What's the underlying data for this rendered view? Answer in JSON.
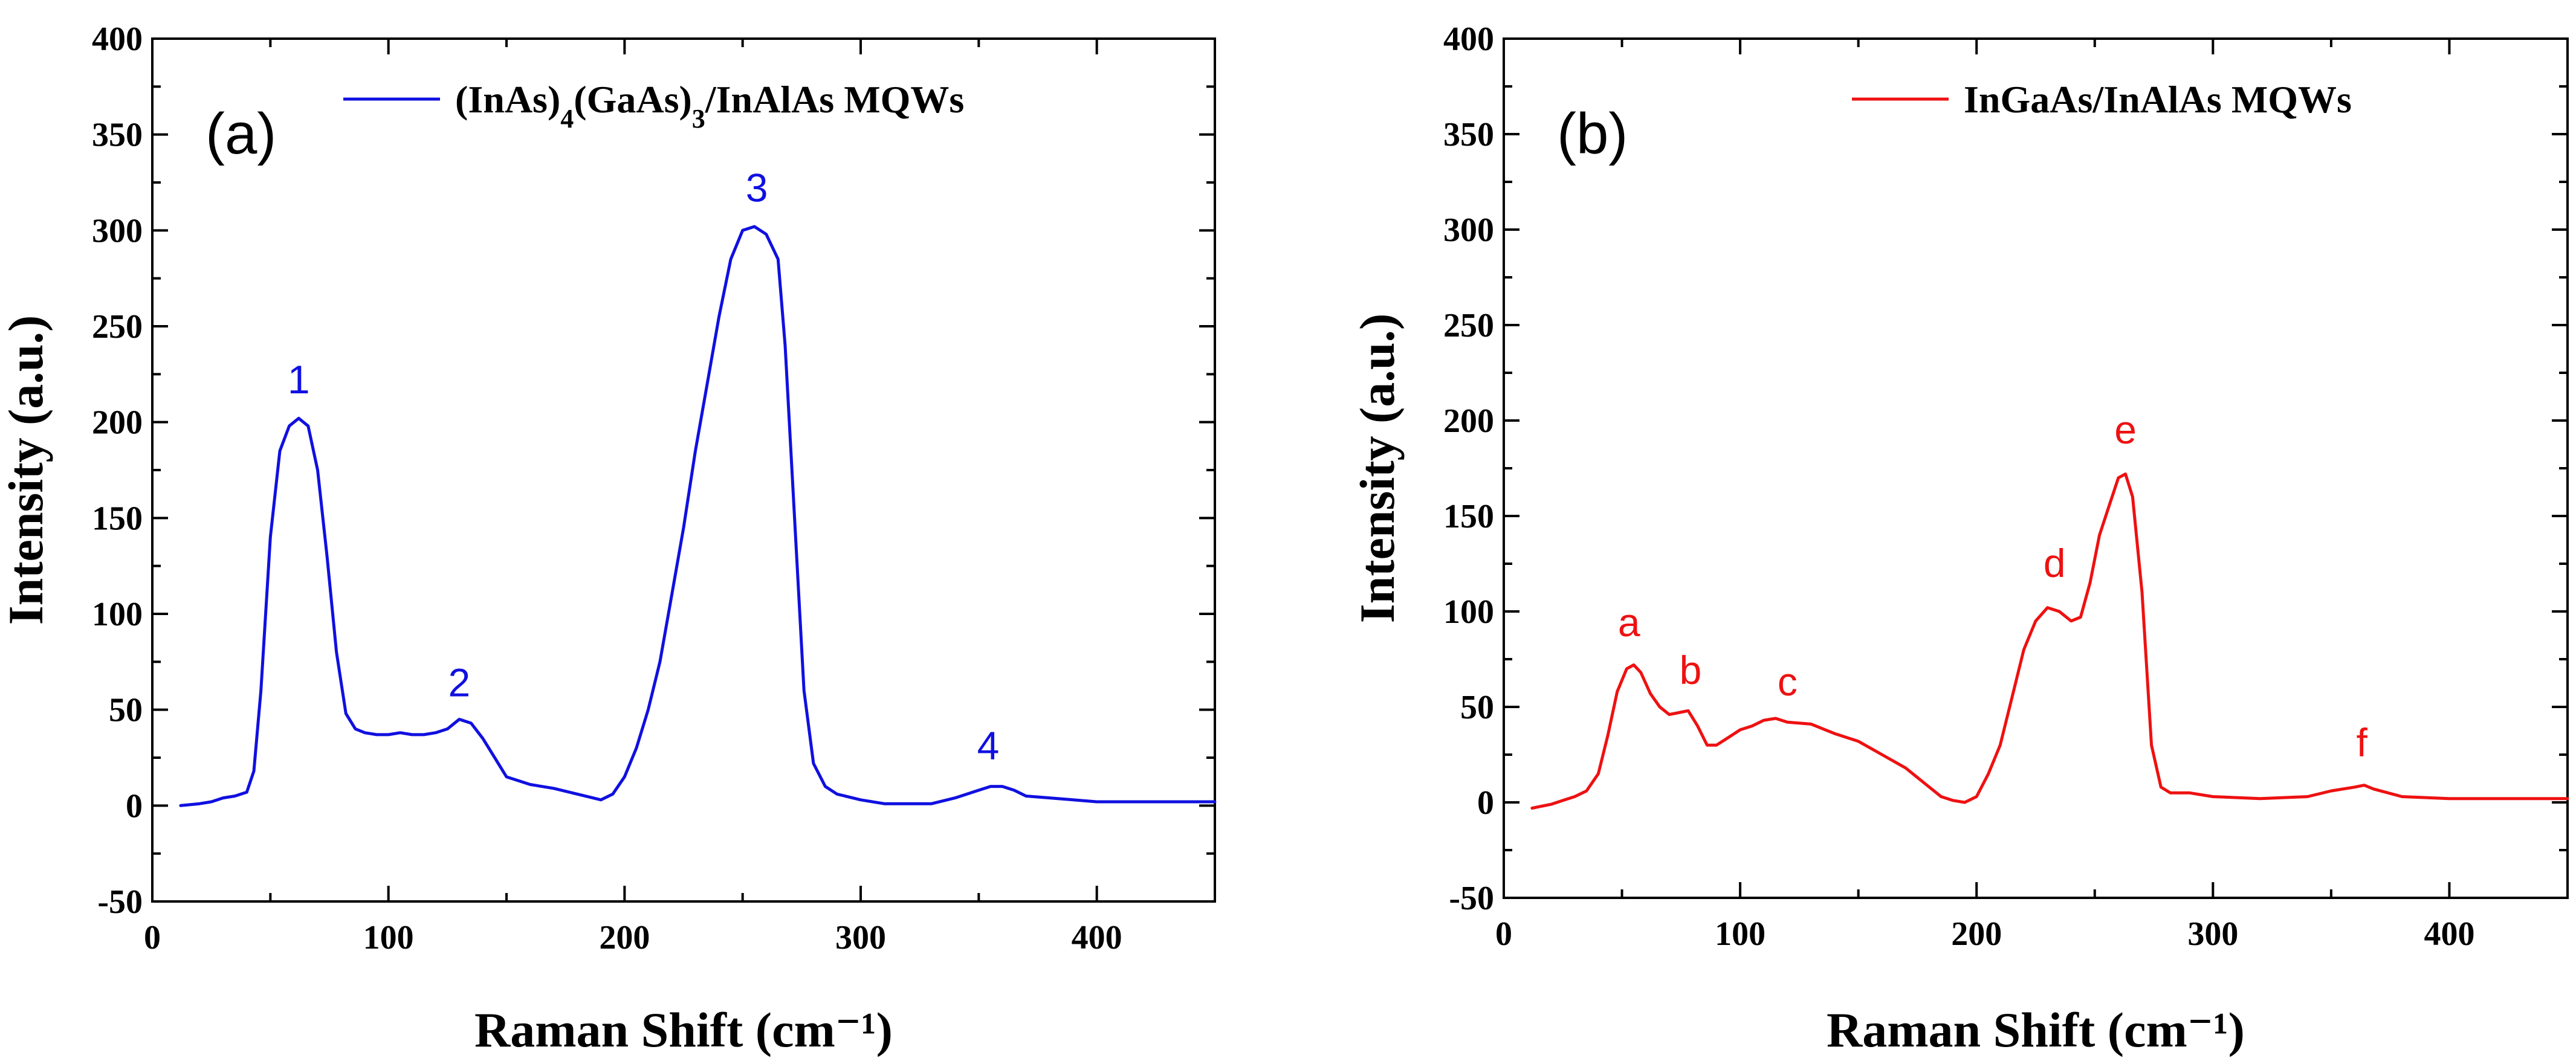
{
  "chart_data": [
    {
      "type": "line",
      "panel_label": "(a)",
      "color": "#1010e0",
      "xlabel": "Raman Shift (cm⁻¹)",
      "ylabel": "Intensity (a.u.)",
      "xlim": [
        0,
        450
      ],
      "ylim": [
        -50,
        400
      ],
      "xticks": [
        0,
        100,
        200,
        300,
        400
      ],
      "yticks": [
        -50,
        0,
        50,
        100,
        150,
        200,
        250,
        300,
        350,
        400
      ],
      "legend": {
        "parts": [
          {
            "text": "(InAs)"
          },
          {
            "text": "4",
            "sub": true
          },
          {
            "text": "(GaAs)"
          },
          {
            "text": "3",
            "sub": true
          },
          {
            "text": "/InAlAs MQWs"
          }
        ],
        "position": "top-right"
      },
      "series": [
        {
          "name": "(InAs)4(GaAs)3/InAlAs MQWs",
          "x": [
            12,
            20,
            25,
            30,
            35,
            40,
            43,
            46,
            50,
            54,
            58,
            62,
            66,
            70,
            74,
            78,
            82,
            86,
            90,
            95,
            100,
            105,
            110,
            115,
            120,
            125,
            130,
            135,
            140,
            145,
            150,
            160,
            170,
            180,
            190,
            195,
            200,
            205,
            210,
            215,
            220,
            225,
            230,
            235,
            240,
            245,
            250,
            255,
            260,
            265,
            268,
            272,
            276,
            280,
            285,
            290,
            300,
            310,
            320,
            330,
            340,
            350,
            355,
            360,
            365,
            370,
            380,
            390,
            400,
            420,
            440,
            450
          ],
          "y": [
            0,
            1,
            2,
            4,
            5,
            7,
            18,
            60,
            140,
            185,
            198,
            202,
            198,
            175,
            130,
            80,
            48,
            40,
            38,
            37,
            37,
            38,
            37,
            37,
            38,
            40,
            45,
            43,
            35,
            25,
            15,
            11,
            9,
            6,
            3,
            6,
            15,
            30,
            50,
            75,
            110,
            145,
            185,
            220,
            255,
            285,
            300,
            302,
            298,
            285,
            240,
            150,
            60,
            22,
            10,
            6,
            3,
            1,
            1,
            1,
            4,
            8,
            10,
            10,
            8,
            5,
            4,
            3,
            2,
            2,
            2,
            2
          ]
        }
      ],
      "annotations": [
        {
          "text": "1",
          "x": 62,
          "y": 215
        },
        {
          "text": "2",
          "x": 130,
          "y": 57
        },
        {
          "text": "3",
          "x": 256,
          "y": 315
        },
        {
          "text": "4",
          "x": 354,
          "y": 24
        }
      ]
    },
    {
      "type": "line",
      "panel_label": "(b)",
      "color": "#ee1111",
      "xlabel": "Raman Shift (cm⁻¹)",
      "ylabel": "Intensity (a.u.)",
      "xlim": [
        0,
        450
      ],
      "ylim": [
        -50,
        400
      ],
      "xticks": [
        0,
        100,
        200,
        300,
        400
      ],
      "yticks": [
        -50,
        0,
        50,
        100,
        150,
        200,
        250,
        300,
        350,
        400
      ],
      "legend": {
        "parts": [
          {
            "text": "InGaAs/InAlAs MQWs"
          }
        ],
        "position": "top-right"
      },
      "series": [
        {
          "name": "InGaAs/InAlAs MQWs",
          "x": [
            12,
            20,
            25,
            30,
            35,
            40,
            44,
            48,
            52,
            55,
            58,
            62,
            66,
            70,
            74,
            78,
            82,
            86,
            90,
            95,
            100,
            105,
            110,
            115,
            120,
            130,
            140,
            150,
            160,
            170,
            180,
            185,
            190,
            195,
            200,
            205,
            210,
            215,
            220,
            225,
            230,
            235,
            240,
            244,
            248,
            252,
            256,
            260,
            263,
            266,
            270,
            274,
            278,
            282,
            290,
            300,
            320,
            340,
            350,
            360,
            364,
            368,
            380,
            400,
            420,
            440,
            450
          ],
          "y": [
            -3,
            -1,
            1,
            3,
            6,
            15,
            35,
            58,
            70,
            72,
            68,
            57,
            50,
            46,
            47,
            48,
            40,
            30,
            30,
            34,
            38,
            40,
            43,
            44,
            42,
            41,
            36,
            32,
            25,
            18,
            8,
            3,
            1,
            0,
            3,
            15,
            30,
            55,
            80,
            95,
            102,
            100,
            95,
            97,
            115,
            140,
            155,
            170,
            172,
            160,
            110,
            30,
            8,
            5,
            5,
            3,
            2,
            3,
            6,
            8,
            9,
            7,
            3,
            2,
            2,
            2,
            2
          ]
        }
      ],
      "annotations": [
        {
          "text": "a",
          "x": 53,
          "y": 87
        },
        {
          "text": "b",
          "x": 79,
          "y": 62
        },
        {
          "text": "c",
          "x": 120,
          "y": 56
        },
        {
          "text": "d",
          "x": 233,
          "y": 118
        },
        {
          "text": "e",
          "x": 263,
          "y": 188
        },
        {
          "text": "f",
          "x": 363,
          "y": 24
        }
      ]
    }
  ]
}
